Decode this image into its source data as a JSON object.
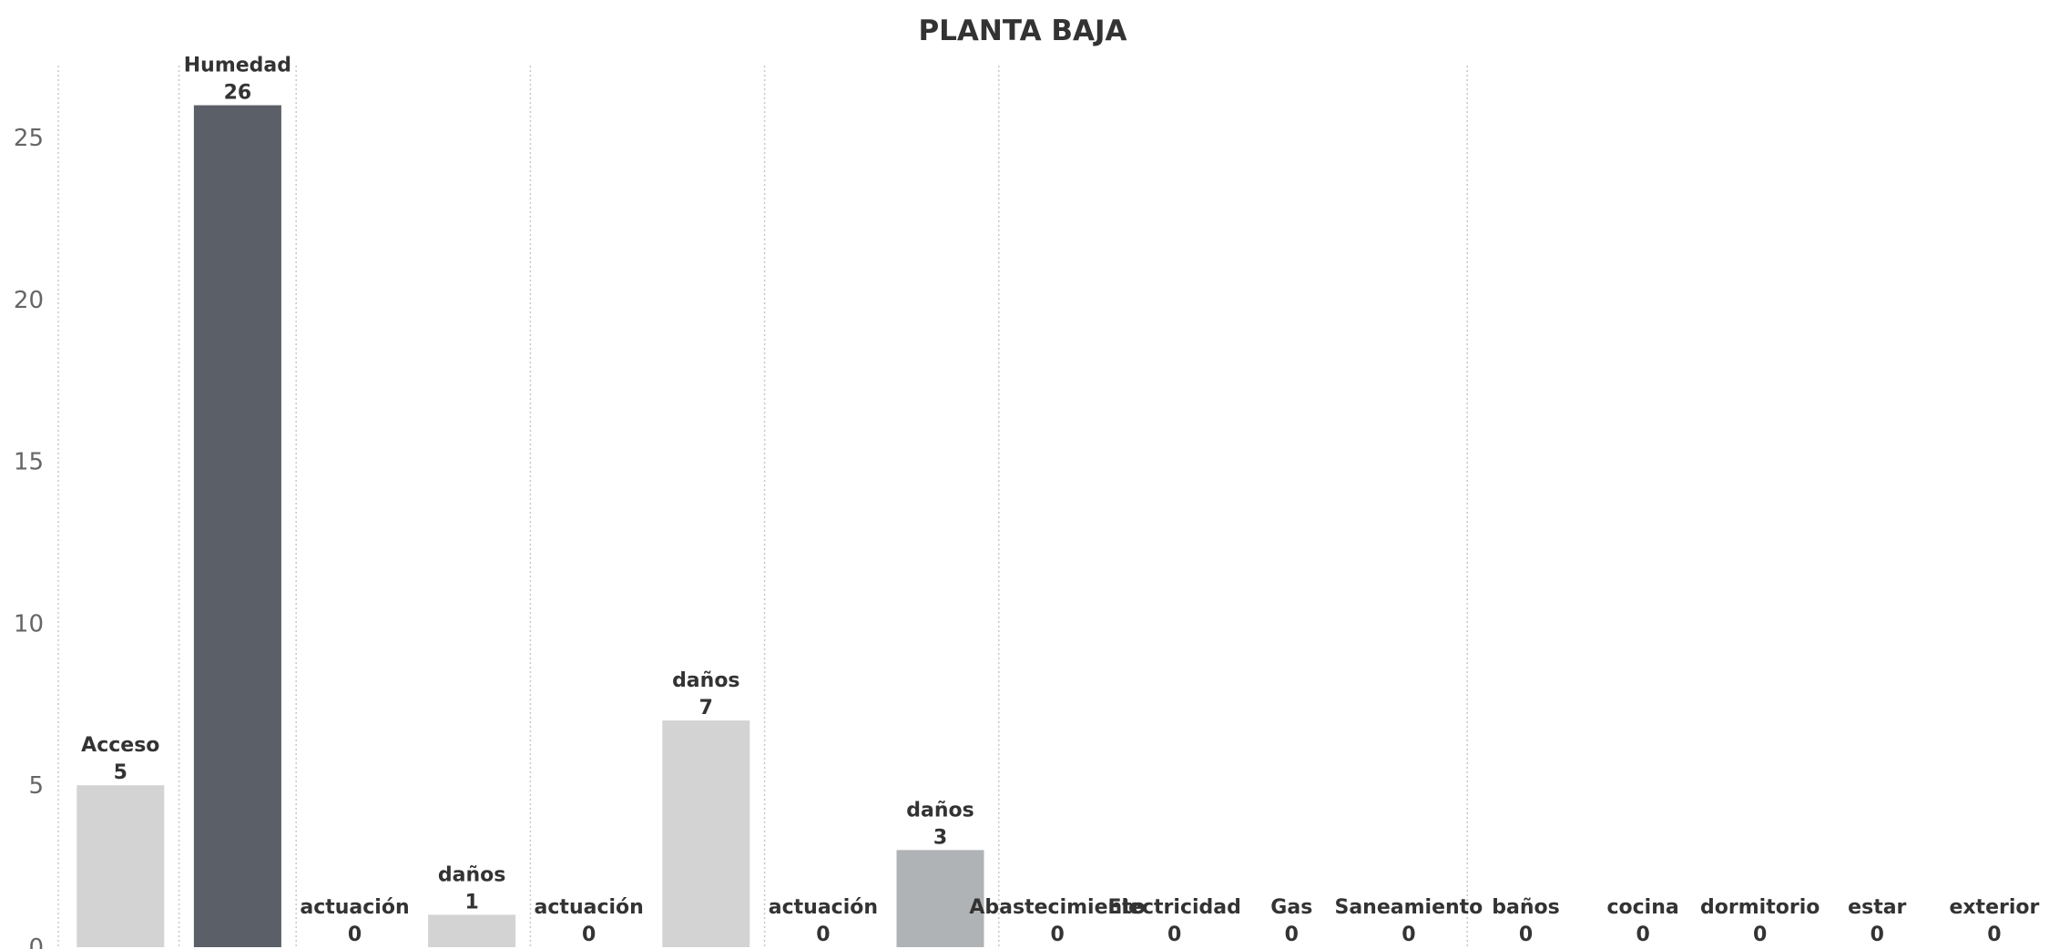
{
  "chart_data": {
    "type": "bar",
    "title": "PLANTA BAJA",
    "xlabel": "",
    "ylabel": "",
    "ylim": [
      0,
      27
    ],
    "yticks": [
      0,
      5,
      10,
      15,
      20,
      25
    ],
    "grid": false,
    "legend": "none",
    "categories": [
      "Acceso",
      "Humedad",
      "actuación",
      "daños",
      "actuación",
      "daños",
      "actuación",
      "daños",
      "Abastecimiento",
      "Electricidad",
      "Gas",
      "Saneamiento",
      "baños",
      "cocina",
      "dormitorio",
      "estar",
      "exterior"
    ],
    "values": [
      5,
      26,
      0,
      1,
      0,
      7,
      0,
      3,
      0,
      0,
      0,
      0,
      0,
      0,
      0,
      0,
      0
    ],
    "group_sizes": [
      1,
      1,
      2,
      2,
      2,
      4,
      5
    ],
    "colors": {
      "Acceso": "#d3d3d3",
      "Humedad": "#5b5f67",
      "daños": "#d3d3d3",
      "daños_last": "#b0b3b5"
    },
    "bar_colors": [
      "#d3d3d3",
      "#5b5f67",
      "#d3d3d3",
      "#d3d3d3",
      "#d3d3d3",
      "#d3d3d3",
      "#d3d3d3",
      "#b0b3b5",
      "#d3d3d3",
      "#d3d3d3",
      "#d3d3d3",
      "#d3d3d3",
      "#d3d3d3",
      "#d3d3d3",
      "#d3d3d3",
      "#d3d3d3",
      "#d3d3d3"
    ]
  }
}
